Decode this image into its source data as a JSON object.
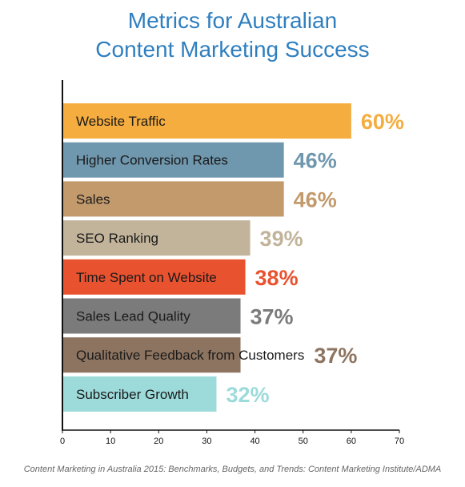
{
  "chart_data": {
    "type": "bar",
    "orientation": "horizontal",
    "title_lines": [
      "Metrics for Australian",
      "Content Marketing Success"
    ],
    "categories": [
      "Website Traffic",
      "Higher Conversion Rates",
      "Sales",
      "SEO Ranking",
      "Time Spent on Website",
      "Sales Lead Quality",
      "Qualitative Feedback from Customers",
      "Subscriber Growth"
    ],
    "values": [
      60,
      46,
      46,
      39,
      38,
      37,
      37,
      32
    ],
    "value_labels": [
      "60%",
      "46%",
      "46%",
      "39%",
      "38%",
      "37%",
      "37%",
      "32%"
    ],
    "colors": [
      "#f5ad3f",
      "#6f97ad",
      "#c29a6c",
      "#c2b49a",
      "#e9522f",
      "#7b7b7b",
      "#8d7460",
      "#9ddbdb"
    ],
    "xlim": [
      0,
      70
    ],
    "xticks": [
      "0",
      "10",
      "20",
      "30",
      "40",
      "50",
      "60",
      "70"
    ],
    "grid": false,
    "legend": "none"
  },
  "source": "Content Marketing in Australia 2015: Benchmarks, Budgets, and Trends: Content Marketing Institute/ADMA"
}
